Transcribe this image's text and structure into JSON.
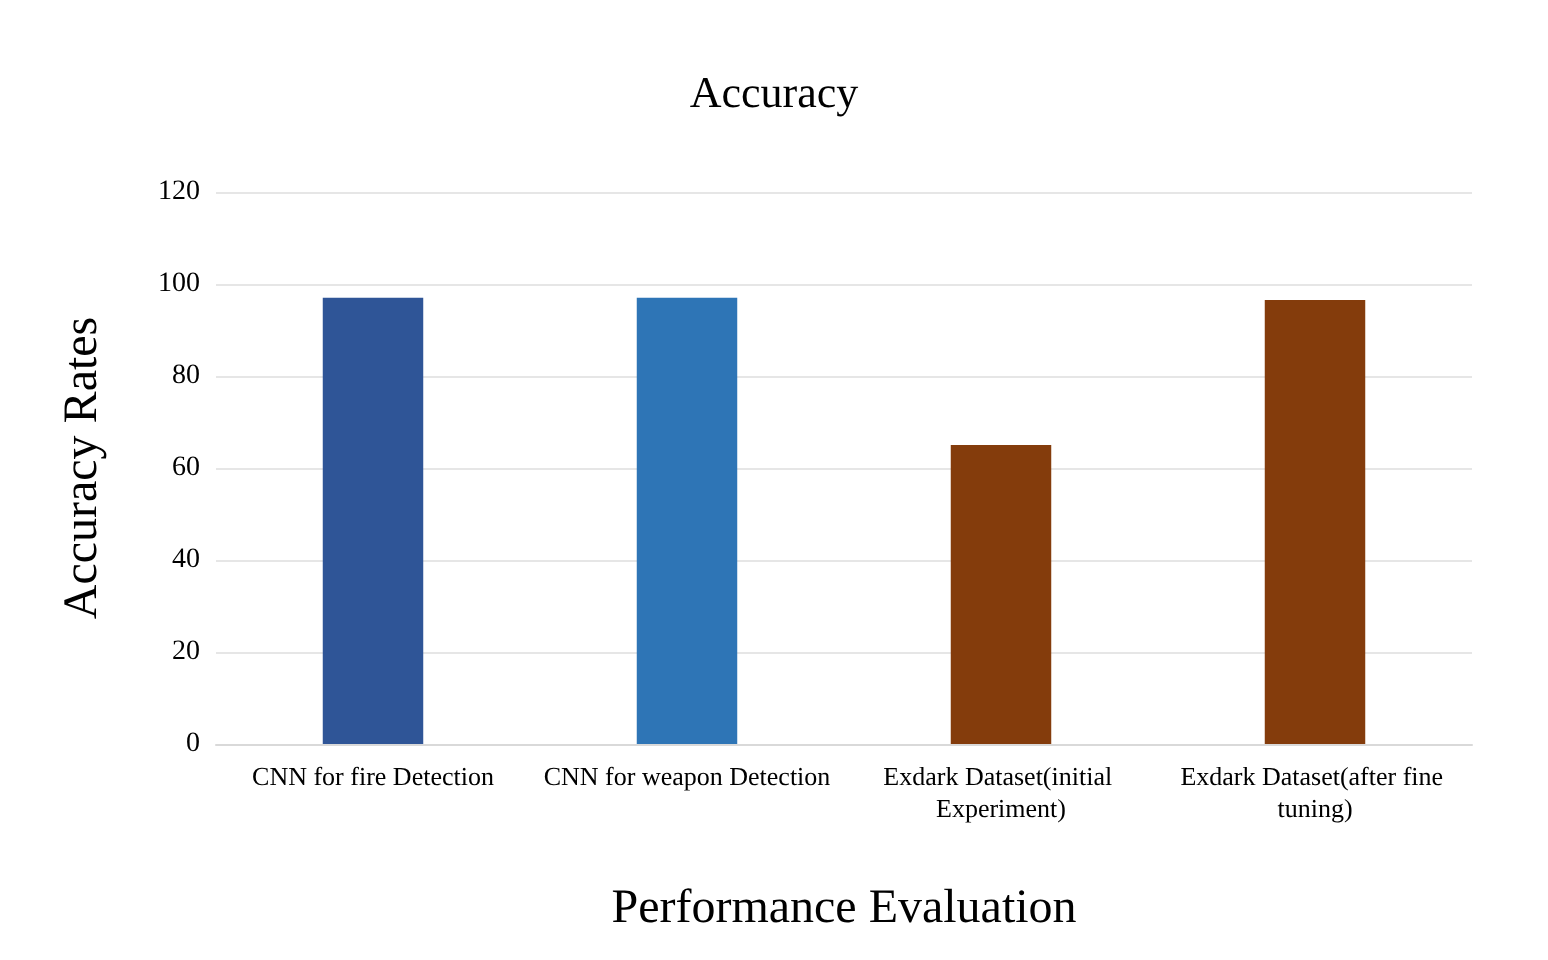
{
  "chart_data": {
    "type": "bar",
    "title": "Accuracy",
    "xlabel": "Performance Evaluation",
    "ylabel": "Accuracy Rates",
    "categories": [
      "CNN for fire Detection",
      "CNN for weapon Detection",
      "Exdark Dataset(initial Experiment)",
      "Exdark Dataset(after fine tuning)"
    ],
    "values": [
      97,
      97,
      65,
      96.5
    ],
    "colors": [
      "#2f5597",
      "#2e75b6",
      "#843c0c",
      "#843c0c"
    ],
    "ylim": [
      0,
      120
    ],
    "yticks": [
      0,
      20,
      40,
      60,
      80,
      100,
      120
    ],
    "grid": "y"
  }
}
